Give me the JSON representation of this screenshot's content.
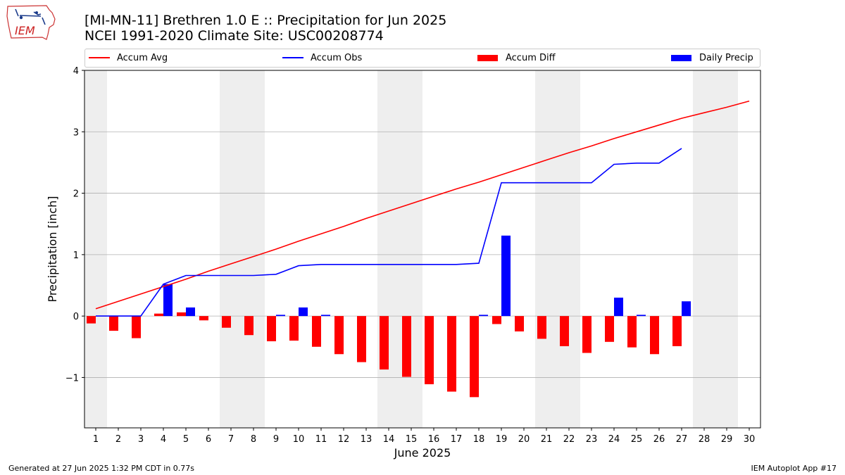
{
  "header": {
    "title_line1": "[MI-MN-11] Brethren 1.0 E :: Precipitation for Jun 2025",
    "title_line2": "NCEI 1991-2020 Climate Site: USC00208774",
    "logo_text": "IEM"
  },
  "legend": {
    "items": [
      {
        "label": "Accum Avg",
        "color": "#ff0000",
        "kind": "line"
      },
      {
        "label": "Accum Obs",
        "color": "#0000ff",
        "kind": "line"
      },
      {
        "label": "Accum Diff",
        "color": "#ff0000",
        "kind": "bar"
      },
      {
        "label": "Daily Precip",
        "color": "#0000ff",
        "kind": "bar"
      }
    ]
  },
  "footer": {
    "left": "Generated at 27 Jun 2025 1:32 PM CDT in 0.77s",
    "right": "IEM Autoplot App #17"
  },
  "chart_data": {
    "type": "bar",
    "xlabel": "June 2025",
    "ylabel": "Precipitation [inch]",
    "ylim": [
      -1.82,
      4.0
    ],
    "yticks": [
      -1,
      0,
      1,
      2,
      3,
      4
    ],
    "ytick_labels": [
      "−1",
      "0",
      "1",
      "2",
      "3",
      "4"
    ],
    "xlim": [
      0.5,
      30.5
    ],
    "x": [
      1,
      2,
      3,
      4,
      5,
      6,
      7,
      8,
      9,
      10,
      11,
      12,
      13,
      14,
      15,
      16,
      17,
      18,
      19,
      20,
      21,
      22,
      23,
      24,
      25,
      26,
      27,
      28,
      29,
      30
    ],
    "weekend_shading": [
      [
        0.5,
        1.5
      ],
      [
        6.5,
        8.5
      ],
      [
        13.5,
        15.5
      ],
      [
        20.5,
        22.5
      ],
      [
        27.5,
        29.5
      ]
    ],
    "grid": "horizontal",
    "series": [
      {
        "name": "Accum Avg",
        "type": "line",
        "color": "#ff0000",
        "x": [
          1,
          2,
          3,
          4,
          5,
          6,
          7,
          8,
          9,
          10,
          11,
          12,
          13,
          14,
          15,
          16,
          17,
          18,
          19,
          20,
          21,
          22,
          23,
          24,
          25,
          26,
          27,
          28,
          29,
          30
        ],
        "values": [
          0.12,
          0.24,
          0.36,
          0.48,
          0.6,
          0.73,
          0.85,
          0.97,
          1.09,
          1.22,
          1.34,
          1.46,
          1.59,
          1.71,
          1.83,
          1.95,
          2.07,
          2.18,
          2.3,
          2.42,
          2.54,
          2.66,
          2.77,
          2.89,
          3.0,
          3.11,
          3.22,
          3.31,
          3.4,
          3.5
        ]
      },
      {
        "name": "Accum Obs",
        "type": "line",
        "color": "#0000ff",
        "x": [
          1,
          2,
          3,
          4,
          5,
          6,
          7,
          8,
          9,
          10,
          11,
          12,
          13,
          14,
          15,
          16,
          17,
          18,
          19,
          20,
          21,
          22,
          23,
          24,
          25,
          26,
          27
        ],
        "values": [
          0.0,
          0.0,
          0.0,
          0.52,
          0.66,
          0.66,
          0.66,
          0.66,
          0.68,
          0.82,
          0.84,
          0.84,
          0.84,
          0.84,
          0.84,
          0.84,
          0.84,
          0.86,
          2.17,
          2.17,
          2.17,
          2.17,
          2.17,
          2.47,
          2.49,
          2.49,
          2.73
        ]
      },
      {
        "name": "Accum Diff",
        "type": "bar",
        "color": "#ff0000",
        "x": [
          1,
          2,
          3,
          4,
          5,
          6,
          7,
          8,
          9,
          10,
          11,
          12,
          13,
          14,
          15,
          16,
          17,
          18,
          19,
          20,
          21,
          22,
          23,
          24,
          25,
          26,
          27
        ],
        "values": [
          -0.12,
          -0.24,
          -0.36,
          0.04,
          0.06,
          -0.07,
          -0.19,
          -0.31,
          -0.41,
          -0.4,
          -0.5,
          -0.62,
          -0.75,
          -0.87,
          -0.99,
          -1.11,
          -1.23,
          -1.32,
          -0.13,
          -0.25,
          -0.37,
          -0.49,
          -0.6,
          -0.42,
          -0.51,
          -0.62,
          -0.49
        ]
      },
      {
        "name": "Daily Precip",
        "type": "bar",
        "color": "#0000ff",
        "x": [
          1,
          2,
          3,
          4,
          5,
          6,
          7,
          8,
          9,
          10,
          11,
          12,
          13,
          14,
          15,
          16,
          17,
          18,
          19,
          20,
          21,
          22,
          23,
          24,
          25,
          26,
          27
        ],
        "values": [
          0,
          0,
          0,
          0.52,
          0.14,
          0,
          0,
          0,
          0.02,
          0.14,
          0.02,
          0,
          0,
          0,
          0,
          0,
          0,
          0.02,
          1.31,
          0,
          0,
          0,
          0,
          0.3,
          0.02,
          0,
          0.24
        ]
      }
    ]
  }
}
